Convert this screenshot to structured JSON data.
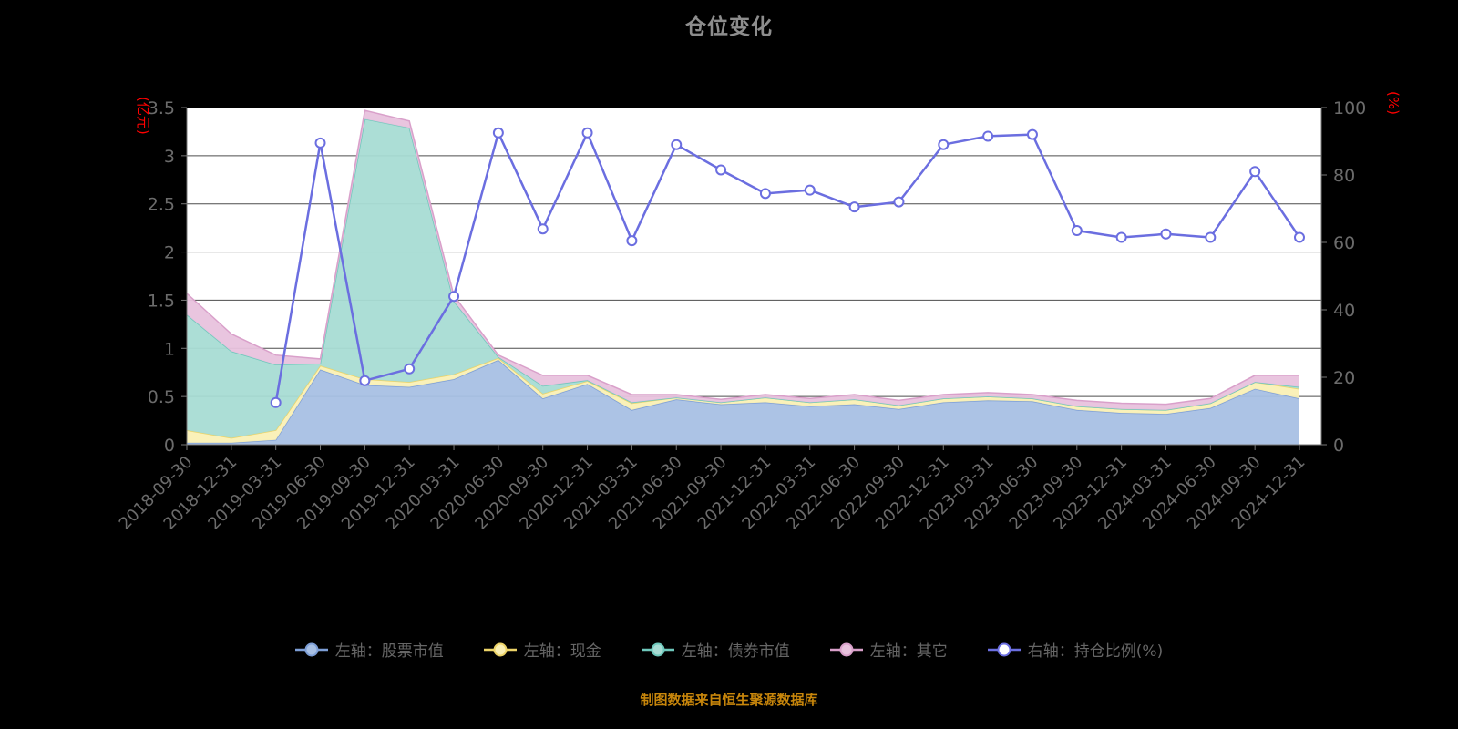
{
  "footer": "制图数据来自恒生聚源数据库",
  "chart_data": {
    "type": "area",
    "title": "仓位变化",
    "stacked": true,
    "grid": true,
    "legend_position": "bottom",
    "background": "#000000",
    "plot_background": "#ffffff",
    "left_axis": {
      "unit": "(亿元)",
      "unit_color": "#ff0000",
      "min": 0,
      "max": 3.5,
      "step": 0.5,
      "ticks": [
        "0",
        "0.5",
        "1",
        "1.5",
        "2",
        "2.5",
        "3",
        "3.5"
      ]
    },
    "right_axis": {
      "unit": "(%)",
      "unit_color": "#ff0000",
      "min": 0,
      "max": 100,
      "step": 20,
      "ticks": [
        "0",
        "20",
        "40",
        "60",
        "80",
        "100"
      ]
    },
    "categories": [
      "2018-09-30",
      "2018-12-31",
      "2019-03-31",
      "2019-06-30",
      "2019-09-30",
      "2019-12-31",
      "2020-03-31",
      "2020-06-30",
      "2020-09-30",
      "2020-12-31",
      "2021-03-31",
      "2021-06-30",
      "2021-09-30",
      "2021-12-31",
      "2022-03-31",
      "2022-06-30",
      "2022-09-30",
      "2022-12-31",
      "2023-03-31",
      "2023-06-30",
      "2023-09-30",
      "2023-12-31",
      "2024-03-31",
      "2024-06-30",
      "2024-09-30",
      "2024-12-31"
    ],
    "series": [
      {
        "id": "stock",
        "name": "左轴：股票市值",
        "type": "area",
        "axis": "left",
        "fill": "#a8c0e4",
        "line": "#7d9ed6",
        "values": [
          0.02,
          0.02,
          0.05,
          0.78,
          0.62,
          0.6,
          0.68,
          0.88,
          0.48,
          0.63,
          0.36,
          0.47,
          0.42,
          0.44,
          0.4,
          0.42,
          0.37,
          0.44,
          0.46,
          0.45,
          0.36,
          0.33,
          0.32,
          0.38,
          0.58,
          0.48
        ]
      },
      {
        "id": "cash",
        "name": "左轴：现金",
        "type": "area",
        "axis": "left",
        "fill": "#faf0b5",
        "line": "#edd468",
        "values": [
          0.13,
          0.05,
          0.1,
          0.04,
          0.06,
          0.05,
          0.05,
          0.02,
          0.05,
          0.03,
          0.07,
          0.02,
          0.02,
          0.05,
          0.04,
          0.05,
          0.04,
          0.04,
          0.04,
          0.03,
          0.04,
          0.04,
          0.04,
          0.05,
          0.07,
          0.1
        ]
      },
      {
        "id": "bond",
        "name": "左轴：债券市值",
        "type": "area",
        "axis": "left",
        "fill": "#a8dcd4",
        "line": "#6ec8bc",
        "values": [
          1.2,
          0.9,
          0.68,
          0.02,
          2.7,
          2.64,
          0.76,
          0.01,
          0.08,
          0.01,
          0.01,
          0,
          0,
          0,
          0,
          0,
          0,
          0,
          0,
          0,
          0,
          0,
          0,
          0,
          0,
          0.02
        ]
      },
      {
        "id": "other",
        "name": "左轴：其它",
        "type": "area",
        "axis": "left",
        "fill": "#e8c2dd",
        "line": "#d9a0ca",
        "values": [
          0.22,
          0.18,
          0.1,
          0.05,
          0.09,
          0.07,
          0.06,
          0.02,
          0.11,
          0.05,
          0.08,
          0.03,
          0.03,
          0.03,
          0.04,
          0.05,
          0.05,
          0.04,
          0.04,
          0.04,
          0.06,
          0.06,
          0.06,
          0.05,
          0.07,
          0.12
        ]
      },
      {
        "id": "ratio",
        "name": "右轴：持仓比例(%)",
        "type": "line",
        "axis": "right",
        "line": "#6b6ee0",
        "marker_fill": "#ffffff",
        "values": [
          null,
          null,
          12.5,
          89.5,
          19,
          22.5,
          44,
          92.5,
          64,
          92.5,
          60.5,
          89,
          81.5,
          74.5,
          75.5,
          70.5,
          72,
          89,
          91.5,
          92,
          63.5,
          61.5,
          62.5,
          61.5,
          81,
          61.5
        ]
      }
    ],
    "style": {
      "grid_color": "#4d4d4d",
      "axis_color": "#777777",
      "tick_label_color": "#6b6b6b",
      "title_color": "#8d8d8d",
      "legend_text_color": "#666666",
      "footer_color": "#c8860b"
    }
  }
}
